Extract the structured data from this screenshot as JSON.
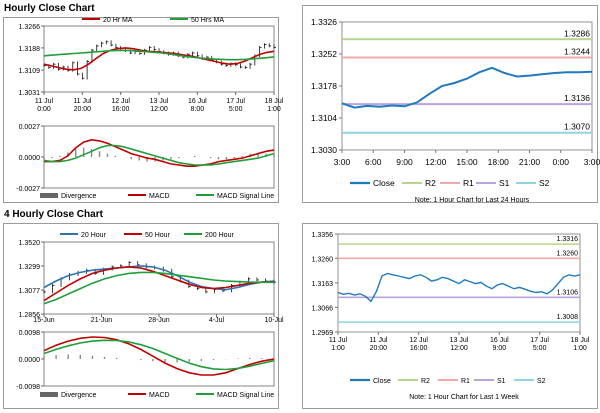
{
  "colors": {
    "red": "#c00000",
    "green": "#1f9e3a",
    "blue": "#2e75b6",
    "black": "#111111",
    "gray": "#888888",
    "lightgreen": "#b5d48c",
    "pink": "#f0a8a8",
    "purple": "#b9a3dd",
    "cyan": "#8fd4e3",
    "chart_blue": "#1f7bc0"
  },
  "page": {
    "hourly_title": "Hourly Close Chart",
    "four_hourly_title": "4 Hourly Close Chart"
  },
  "chart_data": [
    {
      "id": "hourly_price",
      "type": "line",
      "title": "Hourly Close Chart",
      "x_tick_labels": [
        "11 Jul\n0:00",
        "11 Jul\n20:00",
        "12 Jul\n16:00",
        "13 Jul\n12:00",
        "16 Jul\n8:00",
        "17 Jul\n5:00",
        "18 Jul\n1:00"
      ],
      "y_ticks": [
        1.3031,
        1.3109,
        1.3188,
        1.3266
      ],
      "ylim": [
        1.3031,
        1.3266
      ],
      "legend": [
        "20 Hr MA",
        "50 Hrs MA"
      ],
      "series": [
        {
          "name": "Price",
          "style": "bars",
          "values": [
            1.3125,
            1.3118,
            1.313,
            1.3112,
            1.312,
            1.3108,
            1.3135,
            1.3095,
            1.308,
            1.314,
            1.318,
            1.3195,
            1.3205,
            1.321,
            1.3198,
            1.319,
            1.3185,
            1.3178,
            1.317,
            1.3175,
            1.3168,
            1.318,
            1.319,
            1.3182,
            1.3175,
            1.317,
            1.3165,
            1.317,
            1.316,
            1.3155,
            1.3165,
            1.317,
            1.316,
            1.315,
            1.3155,
            1.3145,
            1.3138,
            1.313,
            1.3125,
            1.3132,
            1.3128,
            1.312,
            1.3118,
            1.313,
            1.316,
            1.319,
            1.32,
            1.3195,
            1.319
          ]
        },
        {
          "name": "20 Hr MA",
          "color": "red",
          "values": [
            1.313,
            1.3124,
            1.3118,
            1.3112,
            1.311,
            1.3115,
            1.313,
            1.315,
            1.3168,
            1.318,
            1.3186,
            1.3188,
            1.3185,
            1.318,
            1.3176,
            1.3174,
            1.3172,
            1.317,
            1.3166,
            1.3162,
            1.3158,
            1.3152,
            1.3146,
            1.314,
            1.3134,
            1.313,
            1.3132,
            1.314,
            1.3152,
            1.3164,
            1.3172,
            1.3176
          ]
        },
        {
          "name": "50 Hrs MA",
          "color": "green",
          "values": [
            1.316,
            1.3162,
            1.3164,
            1.3166,
            1.3168,
            1.317,
            1.3172,
            1.3174,
            1.3176,
            1.3178,
            1.3179,
            1.3179,
            1.3178,
            1.3176,
            1.3174,
            1.3172,
            1.317,
            1.3166,
            1.3162,
            1.3158,
            1.3155,
            1.3152,
            1.315,
            1.3148,
            1.3147,
            1.3146,
            1.3146,
            1.3147,
            1.3149,
            1.3151,
            1.3153,
            1.3156
          ]
        }
      ]
    },
    {
      "id": "hourly_macd",
      "type": "line",
      "y_ticks": [
        -0.0027,
        0.0,
        0.0027
      ],
      "y_tick_labels": [
        "-0.0027",
        "0.0000",
        "0.0027"
      ],
      "ylim": [
        -0.0027,
        0.0027
      ],
      "legend": [
        "Divergence",
        "MACD",
        "MACD Signal Line"
      ],
      "series": [
        {
          "name": "Divergence",
          "style": "bars",
          "values": [
            -0.0002,
            -0.0001,
            0.0001,
            0.0004,
            0.0007,
            0.0008,
            0.0007,
            0.0005,
            0.0003,
            0.0001,
            0.0,
            -0.0002,
            -0.0003,
            -0.0004,
            -0.0004,
            -0.0003,
            -0.0002,
            -0.0001,
            0.0,
            0.0001,
            0.0,
            -0.0001,
            -0.0002,
            -0.0002,
            -0.0001,
            0.0001,
            0.0003,
            0.0004,
            0.0003,
            0.0002
          ]
        },
        {
          "name": "MACD",
          "color": "red",
          "values": [
            -0.0004,
            -0.0004,
            -0.0003,
            0.0001,
            0.0008,
            0.0013,
            0.0015,
            0.0014,
            0.0012,
            0.0009,
            0.0006,
            0.0003,
            0.0001,
            -0.0001,
            -0.0002,
            -0.0004,
            -0.0006,
            -0.0007,
            -0.0008,
            -0.0008,
            -0.0007,
            -0.0006,
            -0.0004,
            -0.0003,
            -0.0002,
            -0.0001,
            0.0001,
            0.0003,
            0.0005,
            0.0006
          ]
        },
        {
          "name": "MACD Signal Line",
          "color": "green",
          "values": [
            -0.0003,
            -0.0004,
            -0.0004,
            -0.0003,
            -0.0001,
            0.0002,
            0.0005,
            0.0008,
            0.001,
            0.001,
            0.0009,
            0.0007,
            0.0005,
            0.0003,
            0.0001,
            -0.0001,
            -0.0003,
            -0.0005,
            -0.0006,
            -0.0007,
            -0.0007,
            -0.0007,
            -0.0006,
            -0.0005,
            -0.0004,
            -0.0003,
            -0.0002,
            -0.0001,
            0.0001,
            0.0003
          ]
        }
      ]
    },
    {
      "id": "hourly_24h",
      "type": "line",
      "x_tick_labels": [
        "3:00",
        "6:00",
        "9:00",
        "12:00",
        "15:00",
        "18:00",
        "21:00",
        "0:00",
        "3:00"
      ],
      "y_ticks": [
        1.303,
        1.3104,
        1.3178,
        1.3252,
        1.3326
      ],
      "y_tick_labels": [
        "1.3030",
        "1.3104",
        "1.3178",
        "1.3252",
        "1.3326"
      ],
      "ylim": [
        1.303,
        1.3326
      ],
      "legend": [
        "Close",
        "R2",
        "R1",
        "S1",
        "S2"
      ],
      "note": "Note: 1 Hour Chart for Last 24 Hours",
      "levels": [
        {
          "name": "R2",
          "value": 1.3286,
          "label": "1.3286",
          "color": "lightgreen"
        },
        {
          "name": "R1",
          "value": 1.3244,
          "label": "1.3244",
          "color": "pink"
        },
        {
          "name": "S1",
          "value": 1.3136,
          "label": "1.3136",
          "color": "purple"
        },
        {
          "name": "S2",
          "value": 1.307,
          "label": "1.3070",
          "color": "cyan"
        }
      ],
      "series": [
        {
          "name": "Close",
          "color": "chart_blue",
          "values": [
            1.3138,
            1.3128,
            1.3132,
            1.313,
            1.3133,
            1.3131,
            1.314,
            1.316,
            1.3178,
            1.3185,
            1.3195,
            1.321,
            1.322,
            1.3208,
            1.32,
            1.3202,
            1.3205,
            1.3208,
            1.321,
            1.321,
            1.3211
          ]
        }
      ]
    },
    {
      "id": "four_hourly_price",
      "type": "line",
      "title": "4 Hourly Close Chart",
      "x_tick_labels": [
        "15-Jun",
        "21-Jun",
        "28-Jun",
        "4-Jul",
        "10-Jul"
      ],
      "y_ticks": [
        1.2856,
        1.3077,
        1.3299,
        1.352
      ],
      "ylim": [
        1.2856,
        1.352
      ],
      "legend": [
        "20 Hour",
        "50 Hour",
        "200 Hour"
      ],
      "series": [
        {
          "name": "Price",
          "style": "bars",
          "values": [
            1.306,
            1.312,
            1.318,
            1.322,
            1.324,
            1.326,
            1.323,
            1.327,
            1.329,
            1.33,
            1.333,
            1.331,
            1.329,
            1.328,
            1.326,
            1.32,
            1.316,
            1.311,
            1.309,
            1.306,
            1.308,
            1.307,
            1.312,
            1.315,
            1.318,
            1.317,
            1.316,
            1.315
          ]
        },
        {
          "name": "20 Hour",
          "color": "blue",
          "values": [
            1.31,
            1.316,
            1.321,
            1.324,
            1.326,
            1.327,
            1.328,
            1.329,
            1.33,
            1.329,
            1.326,
            1.321,
            1.315,
            1.311,
            1.309,
            1.308,
            1.31,
            1.313,
            1.315,
            1.316
          ]
        },
        {
          "name": "50 Hour",
          "color": "red",
          "values": [
            1.298,
            1.305,
            1.312,
            1.318,
            1.323,
            1.326,
            1.328,
            1.329,
            1.328,
            1.325,
            1.321,
            1.317,
            1.313,
            1.31,
            1.309,
            1.31,
            1.312,
            1.314,
            1.315,
            1.315
          ]
        },
        {
          "name": "200 Hour",
          "color": "green",
          "values": [
            1.295,
            1.299,
            1.304,
            1.309,
            1.314,
            1.318,
            1.321,
            1.323,
            1.324,
            1.324,
            1.323,
            1.3215,
            1.32,
            1.3185,
            1.317,
            1.316,
            1.3155,
            1.315,
            1.3148,
            1.3148
          ]
        }
      ]
    },
    {
      "id": "four_hourly_macd",
      "type": "line",
      "y_ticks": [
        -0.0098,
        0.0,
        0.0098
      ],
      "y_tick_labels": [
        "-0.0098",
        "0.0000",
        "0.0098"
      ],
      "ylim": [
        -0.0098,
        0.0098
      ],
      "legend": [
        "Divergence",
        "MACD",
        "MACD Signal Line"
      ],
      "series": [
        {
          "name": "Divergence",
          "style": "bars",
          "values": [
            0.001,
            0.0014,
            0.0016,
            0.0015,
            0.0012,
            0.0008,
            0.0004,
            0.0,
            -0.0004,
            -0.0008,
            -0.0011,
            -0.0012,
            -0.001,
            -0.0007,
            -0.0004,
            -0.0001,
            0.0002,
            0.0004,
            0.0003,
            0.0001
          ]
        },
        {
          "name": "MACD",
          "color": "red",
          "values": [
            0.003,
            0.005,
            0.0065,
            0.0075,
            0.008,
            0.0078,
            0.007,
            0.0055,
            0.0035,
            0.001,
            -0.0015,
            -0.0035,
            -0.005,
            -0.0058,
            -0.0058,
            -0.005,
            -0.0035,
            -0.002,
            -0.0008,
            0.0
          ]
        },
        {
          "name": "MACD Signal Line",
          "color": "green",
          "values": [
            0.002,
            0.0035,
            0.0048,
            0.0058,
            0.0065,
            0.0068,
            0.0067,
            0.0062,
            0.0052,
            0.0038,
            0.002,
            0.0002,
            -0.0015,
            -0.0028,
            -0.0036,
            -0.0038,
            -0.0034,
            -0.0026,
            -0.0016,
            -0.0006
          ]
        }
      ]
    },
    {
      "id": "four_hourly_week",
      "type": "line",
      "x_tick_labels": [
        "11 Jul\n1:00",
        "11 Jul\n20:00",
        "12 Jul\n16:00",
        "13 Jul\n12:00",
        "16 Jul\n9:00",
        "17 Jul\n5:00",
        "18 Jul\n1:00"
      ],
      "y_ticks": [
        1.2969,
        1.3066,
        1.3163,
        1.326,
        1.3356
      ],
      "y_tick_labels": [
        "1.2969",
        "1.3066",
        "1.3163",
        "1.3260",
        "1.3356"
      ],
      "ylim": [
        1.2969,
        1.3356
      ],
      "legend": [
        "Close",
        "R2",
        "R1",
        "S1",
        "S2"
      ],
      "note": "Note: 1 Hour Chart for Last 1 Week",
      "levels": [
        {
          "name": "R2",
          "value": 1.3316,
          "label": "1.3316",
          "color": "lightgreen"
        },
        {
          "name": "R1",
          "value": 1.326,
          "label": "1.3260",
          "color": "pink"
        },
        {
          "name": "S1",
          "value": 1.3106,
          "label": "1.3106",
          "color": "purple"
        },
        {
          "name": "S2",
          "value": 1.3008,
          "label": "1.3008",
          "color": "cyan"
        }
      ],
      "series": [
        {
          "name": "Close",
          "color": "chart_blue",
          "values": [
            1.3125,
            1.3118,
            1.3122,
            1.3115,
            1.312,
            1.311,
            1.309,
            1.313,
            1.319,
            1.32,
            1.3195,
            1.319,
            1.3185,
            1.318,
            1.319,
            1.3195,
            1.3185,
            1.317,
            1.3175,
            1.3185,
            1.318,
            1.317,
            1.316,
            1.3175,
            1.3168,
            1.316,
            1.3165,
            1.315,
            1.314,
            1.3155,
            1.316,
            1.315,
            1.314,
            1.3145,
            1.3138,
            1.313,
            1.3125,
            1.3128,
            1.312,
            1.3135,
            1.316,
            1.3185,
            1.3195,
            1.319,
            1.3195
          ]
        }
      ]
    }
  ]
}
